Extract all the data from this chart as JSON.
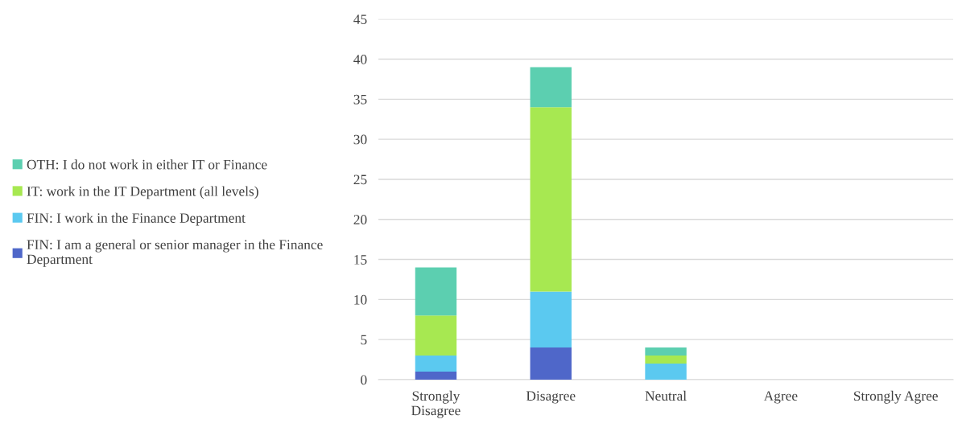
{
  "chart_data": {
    "type": "bar",
    "stacked": true,
    "categories": [
      "Strongly Disagree",
      "Disagree",
      "Neutral",
      "Agree",
      "Strongly Agree"
    ],
    "series": [
      {
        "name": "FIN: I am a general or senior manager in the Finance Department",
        "color": "#4f67c9",
        "values": [
          1,
          4,
          0,
          0,
          0
        ]
      },
      {
        "name": "FIN: I work in the Finance Department",
        "color": "#5bc9f0",
        "values": [
          2,
          7,
          2,
          0,
          0
        ]
      },
      {
        "name": "IT: work in the IT Department (all levels)",
        "color": "#a7e851",
        "values": [
          5,
          23,
          1,
          0,
          0
        ]
      },
      {
        "name": "OTH: I do not work in either IT or Finance",
        "color": "#5ccfb0",
        "values": [
          6,
          5,
          1,
          0,
          0
        ]
      }
    ],
    "ylim": [
      0,
      45
    ],
    "yticks": [
      0,
      5,
      10,
      15,
      20,
      25,
      30,
      35,
      40,
      45
    ],
    "grid": "y",
    "legend": "left"
  }
}
